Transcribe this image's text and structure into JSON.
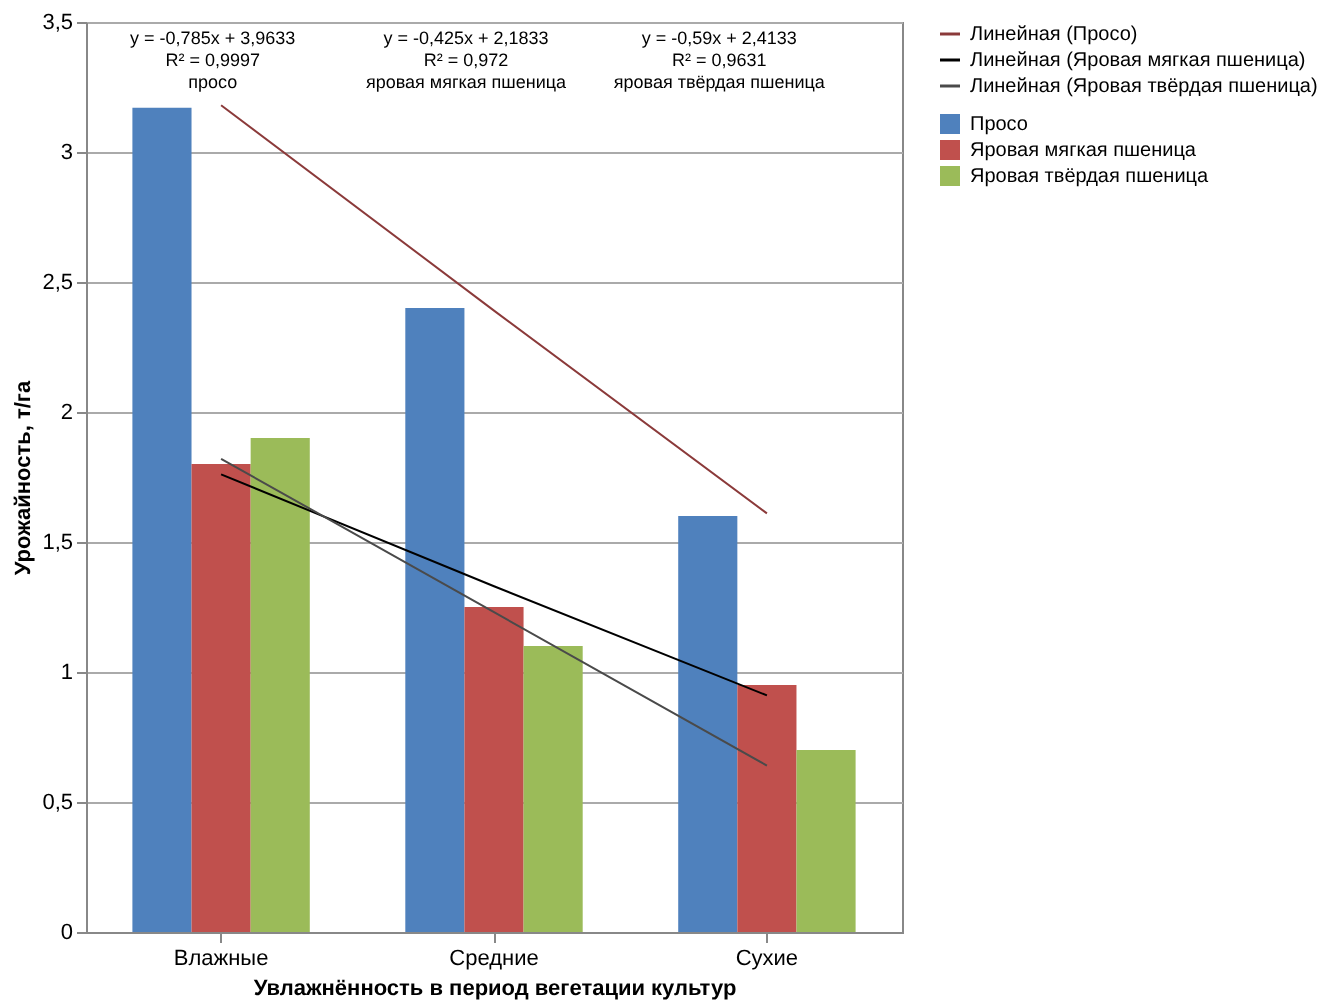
{
  "chart_data": {
    "type": "bar",
    "xlabel": "Увлажнённость в период вегетации культур",
    "ylabel": "Урожайность, т/га",
    "categories": [
      "Влажные",
      "Средние",
      "Сухие"
    ],
    "series": [
      {
        "name": "Просо",
        "color": "#4f81bd",
        "values": [
          3.17,
          2.4,
          1.6
        ]
      },
      {
        "name": "Яровая мягкая пшеница",
        "color": "#c0504d",
        "values": [
          1.8,
          1.25,
          0.95
        ]
      },
      {
        "name": "Яровая твёрдая пшеница",
        "color": "#9bbb59",
        "values": [
          1.9,
          1.1,
          0.7
        ]
      },
      {
        "name": "Линейная (Просо)",
        "type": "line",
        "color": "#8b3a3a",
        "x": [
          "Влажные",
          "Средние",
          "Сухие"
        ],
        "values": [
          3.18,
          2.39,
          1.61
        ]
      },
      {
        "name": "Линейная (Яровая мягкая пшеница)",
        "type": "line",
        "color": "#000000",
        "x": [
          "Влажные",
          "Средние",
          "Сухие"
        ],
        "values": [
          1.76,
          1.33,
          0.91
        ]
      },
      {
        "name": "Линейная (Яровая твёрдая пшеница)",
        "type": "line",
        "color": "#4a4a4a",
        "x": [
          "Влажные",
          "Средние",
          "Сухие"
        ],
        "values": [
          1.82,
          1.23,
          0.64
        ]
      }
    ],
    "ylim": [
      0,
      3.5
    ],
    "yticks": [
      {
        "value": 0,
        "label": "0"
      },
      {
        "value": 0.5,
        "label": "0,5"
      },
      {
        "value": 1,
        "label": "1"
      },
      {
        "value": 1.5,
        "label": "1,5"
      },
      {
        "value": 2,
        "label": "2"
      },
      {
        "value": 2.5,
        "label": "2,5"
      },
      {
        "value": 3,
        "label": "3"
      },
      {
        "value": 3.5,
        "label": "3,5"
      }
    ],
    "grid": "y",
    "legend": "right",
    "annotations": [
      "y = -0,785x + 3,9633\nR² = 0,9997\nпросо",
      "y = -0,425x + 2,1833\nR² = 0,972\nяровая мягкая пшеница",
      "y = -0,59x + 2,4133\nR² = 0,9631\nяровая твёрдая пшеница"
    ]
  }
}
